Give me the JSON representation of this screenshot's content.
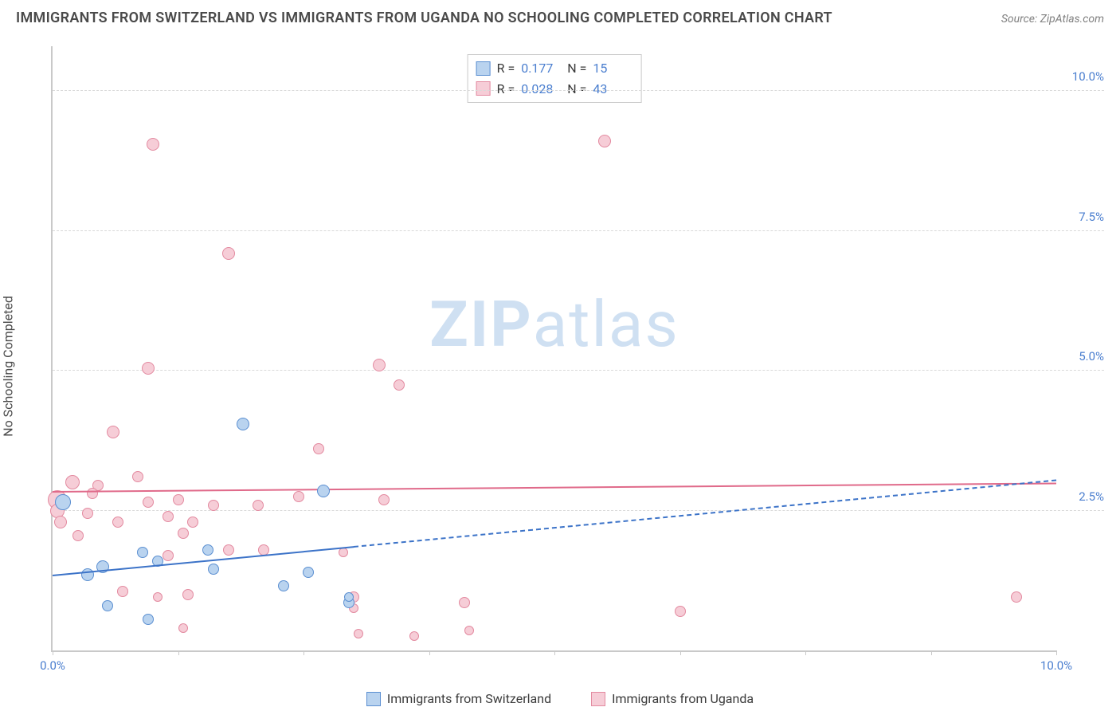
{
  "title": "IMMIGRANTS FROM SWITZERLAND VS IMMIGRANTS FROM UGANDA NO SCHOOLING COMPLETED CORRELATION CHART",
  "source": "Source: ZipAtlas.com",
  "y_axis_label": "No Schooling Completed",
  "watermark": {
    "bold": "ZIP",
    "rest": "atlas"
  },
  "chart": {
    "type": "scatter",
    "xlim": [
      0,
      10
    ],
    "ylim": [
      0,
      10.8
    ],
    "x_ticks": [
      0,
      1.25,
      2.5,
      3.75,
      5.0,
      6.25,
      7.5,
      8.75,
      10.0
    ],
    "x_tick_labels": {
      "0": "0.0%",
      "10": "10.0%"
    },
    "y_gridlines": [
      2.5,
      5.0,
      7.5,
      10.0
    ],
    "y_tick_labels": {
      "2.5": "2.5%",
      "5.0": "5.0%",
      "7.5": "7.5%",
      "10.0": "10.0%"
    },
    "background_color": "#ffffff",
    "grid_color": "#d9d9d9",
    "axis_color": "#c9c9c9",
    "tick_label_color": "#4a7ecf"
  },
  "series": [
    {
      "key": "switzerland",
      "label": "Immigrants from Switzerland",
      "fill": "#b9d3ef",
      "stroke": "#5b8fd1",
      "marker_size_min": 12,
      "marker_size_max": 22,
      "R": "0.177",
      "N": "15",
      "trend": {
        "y_at_x0": 1.35,
        "y_at_x10": 3.05,
        "solid_until_x": 3.0,
        "color": "#3c73c8"
      },
      "points": [
        {
          "x": 0.1,
          "y": 2.65,
          "s": 20
        },
        {
          "x": 0.35,
          "y": 1.35,
          "s": 16
        },
        {
          "x": 0.5,
          "y": 1.5,
          "s": 16
        },
        {
          "x": 0.55,
          "y": 0.8,
          "s": 14
        },
        {
          "x": 0.9,
          "y": 1.75,
          "s": 14
        },
        {
          "x": 0.95,
          "y": 0.55,
          "s": 14
        },
        {
          "x": 1.05,
          "y": 1.6,
          "s": 14
        },
        {
          "x": 1.55,
          "y": 1.8,
          "s": 14
        },
        {
          "x": 1.6,
          "y": 1.45,
          "s": 14
        },
        {
          "x": 1.9,
          "y": 4.05,
          "s": 16
        },
        {
          "x": 2.3,
          "y": 1.15,
          "s": 14
        },
        {
          "x": 2.55,
          "y": 1.4,
          "s": 14
        },
        {
          "x": 2.7,
          "y": 2.85,
          "s": 16
        },
        {
          "x": 2.95,
          "y": 0.85,
          "s": 14
        },
        {
          "x": 2.95,
          "y": 0.95,
          "s": 12
        }
      ]
    },
    {
      "key": "uganda",
      "label": "Immigrants from Uganda",
      "fill": "#f6cdd7",
      "stroke": "#e38aa0",
      "marker_size_min": 12,
      "marker_size_max": 24,
      "R": "0.028",
      "N": "43",
      "trend": {
        "y_at_x0": 2.85,
        "y_at_x10": 3.0,
        "solid_until_x": 10.0,
        "color": "#e06a8a"
      },
      "points": [
        {
          "x": 0.05,
          "y": 2.7,
          "s": 24
        },
        {
          "x": 0.05,
          "y": 2.5,
          "s": 18
        },
        {
          "x": 0.08,
          "y": 2.3,
          "s": 16
        },
        {
          "x": 0.2,
          "y": 3.0,
          "s": 18
        },
        {
          "x": 0.25,
          "y": 2.05,
          "s": 14
        },
        {
          "x": 0.35,
          "y": 2.45,
          "s": 14
        },
        {
          "x": 0.45,
          "y": 2.95,
          "s": 14
        },
        {
          "x": 0.6,
          "y": 3.9,
          "s": 16
        },
        {
          "x": 0.65,
          "y": 2.3,
          "s": 14
        },
        {
          "x": 0.7,
          "y": 1.05,
          "s": 14
        },
        {
          "x": 0.85,
          "y": 3.1,
          "s": 14
        },
        {
          "x": 0.95,
          "y": 2.65,
          "s": 14
        },
        {
          "x": 0.95,
          "y": 5.05,
          "s": 16
        },
        {
          "x": 1.0,
          "y": 9.05,
          "s": 16
        },
        {
          "x": 1.05,
          "y": 0.95,
          "s": 12
        },
        {
          "x": 1.15,
          "y": 2.4,
          "s": 14
        },
        {
          "x": 1.15,
          "y": 1.7,
          "s": 14
        },
        {
          "x": 1.25,
          "y": 2.7,
          "s": 14
        },
        {
          "x": 1.3,
          "y": 2.1,
          "s": 14
        },
        {
          "x": 1.3,
          "y": 0.4,
          "s": 12
        },
        {
          "x": 1.35,
          "y": 1.0,
          "s": 14
        },
        {
          "x": 1.4,
          "y": 2.3,
          "s": 14
        },
        {
          "x": 1.6,
          "y": 2.6,
          "s": 14
        },
        {
          "x": 1.75,
          "y": 7.1,
          "s": 16
        },
        {
          "x": 1.75,
          "y": 1.8,
          "s": 14
        },
        {
          "x": 2.05,
          "y": 2.6,
          "s": 14
        },
        {
          "x": 2.1,
          "y": 1.8,
          "s": 14
        },
        {
          "x": 2.45,
          "y": 2.75,
          "s": 14
        },
        {
          "x": 2.65,
          "y": 3.6,
          "s": 14
        },
        {
          "x": 2.9,
          "y": 1.75,
          "s": 12
        },
        {
          "x": 3.0,
          "y": 0.95,
          "s": 14
        },
        {
          "x": 3.0,
          "y": 0.75,
          "s": 12
        },
        {
          "x": 3.05,
          "y": 0.3,
          "s": 12
        },
        {
          "x": 3.25,
          "y": 5.1,
          "s": 16
        },
        {
          "x": 3.3,
          "y": 2.7,
          "s": 14
        },
        {
          "x": 3.45,
          "y": 4.75,
          "s": 14
        },
        {
          "x": 3.6,
          "y": 0.25,
          "s": 12
        },
        {
          "x": 4.1,
          "y": 0.85,
          "s": 14
        },
        {
          "x": 4.15,
          "y": 0.35,
          "s": 12
        },
        {
          "x": 5.5,
          "y": 9.1,
          "s": 16
        },
        {
          "x": 6.25,
          "y": 0.7,
          "s": 14
        },
        {
          "x": 9.6,
          "y": 0.95,
          "s": 14
        },
        {
          "x": 0.4,
          "y": 2.8,
          "s": 14
        }
      ]
    }
  ],
  "stat_legend": {
    "R_label": "R  =",
    "N_label": "N  ="
  },
  "bottom_legend_order": [
    "switzerland",
    "uganda"
  ]
}
